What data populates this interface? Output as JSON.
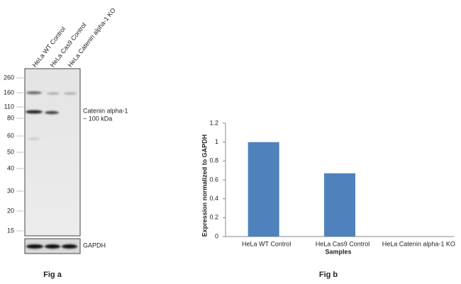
{
  "blot": {
    "lanes": [
      "HeLa WT Control",
      "HeLa Cas9 Control",
      "HeLa Catenin alpha-1 KO"
    ],
    "markers": [
      260,
      160,
      110,
      80,
      60,
      50,
      40,
      30,
      20,
      15
    ],
    "band_label": "Catenin alpha-1",
    "band_size": "~ 100 kDa",
    "loading_label": "GAPDH",
    "caption": "Fig a"
  },
  "chart_data": {
    "type": "bar",
    "categories": [
      "HeLa WT Control",
      "HeLa Cas9 Control",
      "HeLa Catenin alpha-1 KO"
    ],
    "values": [
      1,
      0.67,
      0
    ],
    "color": "#4f81bd",
    "ylim": [
      0,
      1.2
    ],
    "yticks": [
      0,
      0.2,
      0.4,
      0.6,
      0.8,
      1,
      1.2
    ],
    "ylabel": "Expression normalized to GAPDH",
    "xlabel": "Samples",
    "caption": "Fig b"
  }
}
